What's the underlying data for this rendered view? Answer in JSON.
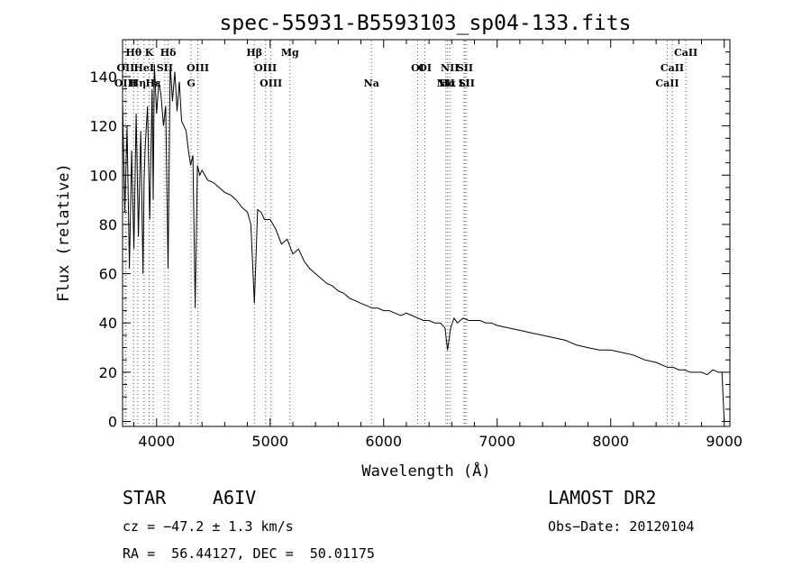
{
  "chart_data": {
    "type": "line",
    "title": "spec-55931-B5593103_sp04-133.fits",
    "xlabel": "Wavelength (Å)",
    "ylabel": "Flux (relative)",
    "xlim": [
      3700,
      9050
    ],
    "ylim": [
      -2,
      155
    ],
    "xticks": [
      4000,
      5000,
      6000,
      7000,
      8000,
      9000
    ],
    "yticks": [
      0,
      20,
      40,
      60,
      80,
      100,
      120,
      140
    ],
    "series": [
      {
        "name": "flux",
        "x": [
          3700,
          3720,
          3740,
          3760,
          3780,
          3800,
          3820,
          3840,
          3860,
          3880,
          3890,
          3900,
          3920,
          3940,
          3960,
          3970,
          3980,
          4000,
          4020,
          4040,
          4060,
          4080,
          4101,
          4120,
          4140,
          4160,
          4180,
          4200,
          4220,
          4240,
          4260,
          4280,
          4300,
          4320,
          4340,
          4360,
          4380,
          4400,
          4450,
          4500,
          4550,
          4600,
          4650,
          4700,
          4750,
          4800,
          4830,
          4861,
          4890,
          4920,
          4950,
          5000,
          5050,
          5100,
          5150,
          5200,
          5250,
          5300,
          5350,
          5400,
          5450,
          5500,
          5550,
          5600,
          5650,
          5700,
          5750,
          5800,
          5850,
          5900,
          5950,
          6000,
          6050,
          6100,
          6150,
          6200,
          6250,
          6300,
          6350,
          6400,
          6450,
          6500,
          6540,
          6563,
          6590,
          6620,
          6650,
          6700,
          6750,
          6800,
          6850,
          6900,
          6950,
          7000,
          7100,
          7200,
          7300,
          7400,
          7500,
          7600,
          7700,
          7800,
          7900,
          8000,
          8100,
          8200,
          8300,
          8400,
          8500,
          8550,
          8600,
          8650,
          8700,
          8750,
          8800,
          8850,
          8900,
          8950,
          8980,
          9000
        ],
        "y": [
          130,
          85,
          120,
          62,
          110,
          70,
          125,
          75,
          118,
          60,
          98,
          112,
          128,
          82,
          135,
          90,
          145,
          125,
          138,
          132,
          120,
          128,
          62,
          145,
          130,
          142,
          126,
          138,
          122,
          120,
          118,
          110,
          104,
          108,
          46,
          104,
          100,
          102,
          98,
          97,
          95,
          93,
          92,
          90,
          87,
          85,
          80,
          48,
          86,
          85,
          82,
          82,
          78,
          72,
          74,
          68,
          70,
          65,
          62,
          60,
          58,
          56,
          55,
          53,
          52,
          50,
          49,
          48,
          47,
          46,
          46,
          45,
          45,
          44,
          43,
          44,
          43,
          42,
          41,
          41,
          40,
          40,
          38,
          29,
          38,
          42,
          40,
          42,
          41,
          41,
          41,
          40,
          40,
          39,
          38,
          37,
          36,
          35,
          34,
          33,
          31,
          30,
          29,
          29,
          28,
          27,
          25,
          24,
          22,
          22,
          21,
          21,
          20,
          20,
          20,
          19,
          21,
          20,
          20,
          0
        ]
      }
    ],
    "spectral_lines": [
      {
        "label": "Hθ",
        "wavelength": 3798,
        "row": 1
      },
      {
        "label": "K",
        "wavelength": 3934,
        "row": 1
      },
      {
        "label": "Hδ",
        "wavelength": 4102,
        "row": 1
      },
      {
        "label": "Hβ",
        "wavelength": 4861,
        "row": 1
      },
      {
        "label": "Mg",
        "wavelength": 5175,
        "row": 1
      },
      {
        "label": "CaII",
        "wavelength": 8662,
        "row": 1
      },
      {
        "label": "OII",
        "wavelength": 3727,
        "row": 2
      },
      {
        "label": "HeI",
        "wavelength": 3889,
        "row": 2
      },
      {
        "label": "SII",
        "wavelength": 4072,
        "row": 2
      },
      {
        "label": "OIII",
        "wavelength": 4363,
        "row": 2
      },
      {
        "label": "OIII",
        "wavelength": 4959,
        "row": 2
      },
      {
        "label": "OI",
        "wavelength": 6300,
        "row": 2
      },
      {
        "label": "OI",
        "wavelength": 6364,
        "row": 2
      },
      {
        "label": "NII",
        "wavelength": 6583,
        "row": 2
      },
      {
        "label": "SII",
        "wavelength": 6716,
        "row": 2
      },
      {
        "label": "CaII",
        "wavelength": 8542,
        "row": 2
      },
      {
        "label": "OIII",
        "wavelength": 3727,
        "row": 3
      },
      {
        "label": "Hη",
        "wavelength": 3835,
        "row": 3
      },
      {
        "label": "Hε",
        "wavelength": 3970,
        "row": 3
      },
      {
        "label": "G",
        "wavelength": 4304,
        "row": 3
      },
      {
        "label": "OIII",
        "wavelength": 5007,
        "row": 3
      },
      {
        "label": "Na",
        "wavelength": 5893,
        "row": 3
      },
      {
        "label": "Hα",
        "wavelength": 6563,
        "row": 3
      },
      {
        "label": "SII",
        "wavelength": 6731,
        "row": 3
      },
      {
        "label": "NII",
        "wavelength": 6548,
        "row": 4
      },
      {
        "label": "Li",
        "wavelength": 6708,
        "row": 4
      },
      {
        "label": "CaII",
        "wavelength": 8498,
        "row": 4
      }
    ]
  },
  "info": {
    "class": "STAR",
    "subclass": "A6IV",
    "survey": "LAMOST DR2",
    "cz": "cz = −47.2 ± 1.3 km/s",
    "obs_date": "Obs−Date: 20120104",
    "coords": "RA =  56.44127, DEC =  50.01175"
  }
}
